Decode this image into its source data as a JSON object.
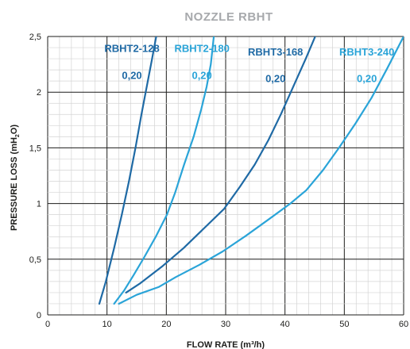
{
  "chart_data": {
    "type": "line",
    "title": "NOZZLE RBHT",
    "xlabel": "FLOW RATE (m³/h)",
    "ylabel_parts": [
      "PRESSURE LOSS (mH",
      "2",
      "O)"
    ],
    "xlim": [
      0,
      60
    ],
    "ylim": [
      0,
      2.5
    ],
    "x_ticks": [
      {
        "v": 0,
        "label": "0"
      },
      {
        "v": 10,
        "label": "10"
      },
      {
        "v": 20,
        "label": "20"
      },
      {
        "v": 30,
        "label": "30"
      },
      {
        "v": 40,
        "label": "40"
      },
      {
        "v": 50,
        "label": "50"
      },
      {
        "v": 60,
        "label": "60"
      }
    ],
    "y_ticks": [
      {
        "v": 0,
        "label": "0"
      },
      {
        "v": 0.5,
        "label": "0,5"
      },
      {
        "v": 1,
        "label": "1"
      },
      {
        "v": 1.5,
        "label": "1,5"
      },
      {
        "v": 2,
        "label": "2"
      },
      {
        "v": 2.5,
        "label": "2,5"
      }
    ],
    "grid": true,
    "series": [
      {
        "name": "RBHT2-128",
        "sublabel": "0,20",
        "color": "#1f6aa5",
        "points": [
          [
            8.7,
            0.1
          ],
          [
            9.8,
            0.3
          ],
          [
            11.2,
            0.6
          ],
          [
            12.5,
            0.9
          ],
          [
            13.7,
            1.2
          ],
          [
            14.8,
            1.5
          ],
          [
            15.8,
            1.8
          ],
          [
            16.7,
            2.05
          ],
          [
            17.6,
            2.3
          ],
          [
            18.3,
            2.5
          ]
        ]
      },
      {
        "name": "RBHT2-180",
        "sublabel": "0,20",
        "color": "#2aa4d8",
        "points": [
          [
            11.2,
            0.1
          ],
          [
            12.9,
            0.22
          ],
          [
            14.4,
            0.35
          ],
          [
            16.3,
            0.52
          ],
          [
            18.2,
            0.7
          ],
          [
            20.1,
            0.9
          ],
          [
            21.5,
            1.1
          ],
          [
            23.0,
            1.35
          ],
          [
            24.6,
            1.6
          ],
          [
            25.9,
            1.85
          ],
          [
            26.8,
            2.05
          ],
          [
            27.5,
            2.25
          ],
          [
            28.0,
            2.5
          ]
        ]
      },
      {
        "name": "RBHT3-168",
        "sublabel": "0,20",
        "color": "#1f6aa5",
        "points": [
          [
            13.2,
            0.2
          ],
          [
            15.5,
            0.28
          ],
          [
            19.4,
            0.44
          ],
          [
            22.9,
            0.6
          ],
          [
            26.4,
            0.78
          ],
          [
            29.7,
            0.95
          ],
          [
            32.4,
            1.15
          ],
          [
            34.9,
            1.35
          ],
          [
            37.2,
            1.57
          ],
          [
            39.3,
            1.8
          ],
          [
            41.4,
            2.05
          ],
          [
            43.5,
            2.3
          ],
          [
            45.1,
            2.5
          ]
        ]
      },
      {
        "name": "RBHT3-240",
        "sublabel": "0,20",
        "color": "#2aa4d8",
        "points": [
          [
            12.0,
            0.1
          ],
          [
            15.0,
            0.18
          ],
          [
            18.7,
            0.25
          ],
          [
            21.6,
            0.34
          ],
          [
            25.6,
            0.45
          ],
          [
            29.5,
            0.57
          ],
          [
            33.4,
            0.71
          ],
          [
            37.3,
            0.86
          ],
          [
            40.9,
            1.0
          ],
          [
            43.6,
            1.12
          ],
          [
            46.4,
            1.3
          ],
          [
            49.1,
            1.5
          ],
          [
            51.9,
            1.72
          ],
          [
            54.6,
            1.95
          ],
          [
            57.3,
            2.22
          ],
          [
            60.0,
            2.5
          ]
        ]
      }
    ]
  }
}
